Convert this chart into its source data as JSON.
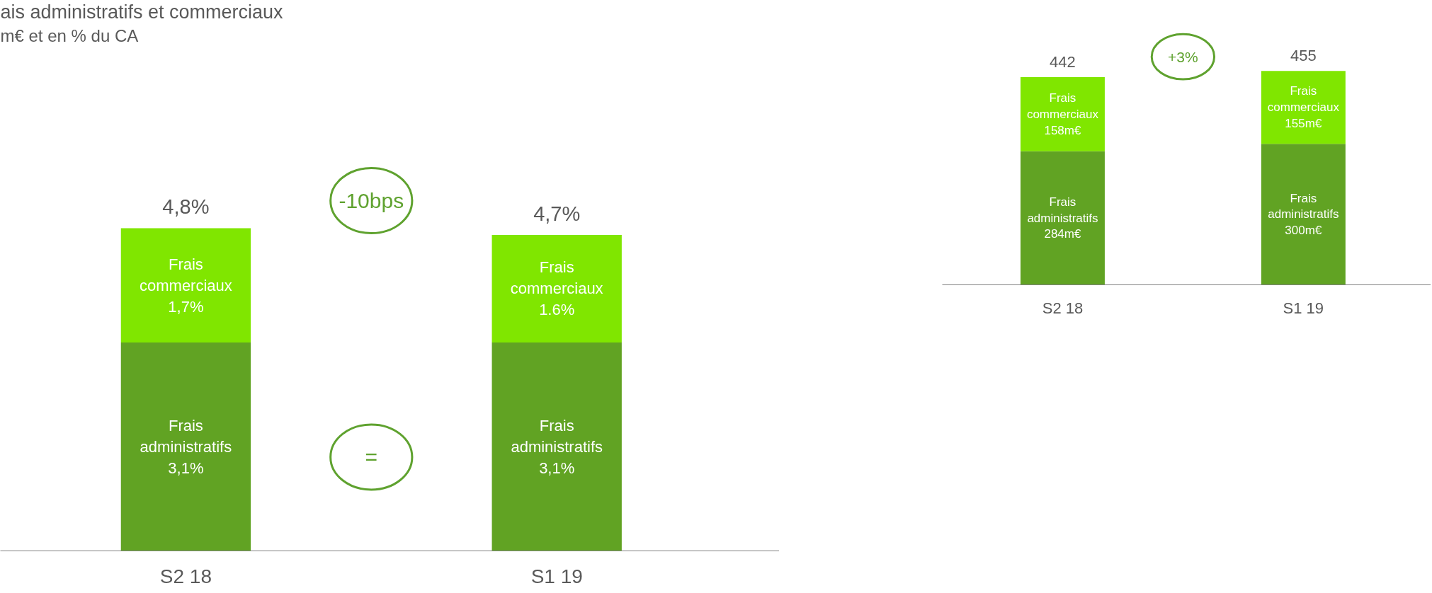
{
  "chart_data": [
    {
      "type": "bar",
      "stacked": true,
      "title": "ais administratifs et commerciaux",
      "subtitle": "m€ et en % du CA",
      "categories": [
        "S2 18",
        "S1 19"
      ],
      "series": [
        {
          "name": "Frais administratifs",
          "color": "#61a323",
          "values": [
            3.1,
            3.1
          ],
          "value_labels": [
            "3,1%",
            "3,1%"
          ]
        },
        {
          "name": "Frais commerciaux",
          "color": "#80e600",
          "values": [
            1.7,
            1.6
          ],
          "value_labels": [
            "1,7%",
            "1.6%"
          ]
        }
      ],
      "totals": [
        "4,8%",
        "4,7%"
      ],
      "annotations": [
        "-10bps",
        "="
      ]
    },
    {
      "type": "bar",
      "stacked": true,
      "categories": [
        "S2 18",
        "S1 19"
      ],
      "series": [
        {
          "name": "Frais administratifs",
          "color": "#61a323",
          "values": [
            284,
            300
          ],
          "value_labels": [
            "284m€",
            "300m€"
          ]
        },
        {
          "name": "Frais commerciaux",
          "color": "#80e600",
          "values": [
            158,
            155
          ],
          "value_labels": [
            "158m€",
            "155m€"
          ]
        }
      ],
      "totals": [
        "442",
        "455"
      ],
      "annotations": [
        "+3%"
      ]
    }
  ]
}
